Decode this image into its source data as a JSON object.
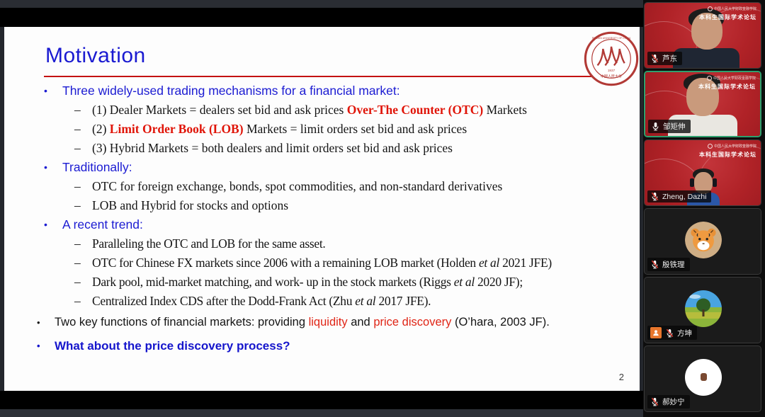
{
  "slide": {
    "title": "Motivation",
    "page_number": "2",
    "logo": {
      "arc_text": "RENMIN UNIVERSITY OF CHINA",
      "cn_text": "中国人民大学",
      "year": "1937"
    },
    "bullets": [
      {
        "type": "heading",
        "marker": "•",
        "segments": [
          {
            "text": "Three widely-used trading mechanisms for a financial market:"
          }
        ]
      },
      {
        "type": "sub",
        "marker": "–",
        "segments": [
          {
            "text": "(1) Dealer Markets = dealers set bid and ask prices "
          },
          {
            "text": "Over-The Counter (OTC)",
            "style": "red-bold"
          },
          {
            "text": " Markets"
          }
        ]
      },
      {
        "type": "sub",
        "marker": "–",
        "segments": [
          {
            "text": "(2) "
          },
          {
            "text": "Limit Order Book (LOB)",
            "style": "red-bold"
          },
          {
            "text": " Markets = limit orders set bid and ask prices"
          }
        ]
      },
      {
        "type": "sub",
        "marker": "–",
        "segments": [
          {
            "text": "(3) Hybrid Markets = both dealers and limit orders set bid and ask prices"
          }
        ]
      },
      {
        "type": "heading",
        "marker": "•",
        "segments": [
          {
            "text": "Traditionally:"
          }
        ]
      },
      {
        "type": "sub",
        "marker": "–",
        "segments": [
          {
            "text": "OTC for foreign exchange, bonds, spot commodities, and non-standard derivatives"
          }
        ]
      },
      {
        "type": "sub",
        "marker": "–",
        "segments": [
          {
            "text": "LOB and Hybrid for stocks and options"
          }
        ]
      },
      {
        "type": "heading",
        "marker": "•",
        "segments": [
          {
            "text": "A recent trend:"
          }
        ]
      },
      {
        "type": "sub-narrow",
        "marker": "–",
        "segments": [
          {
            "text": "Paralleling the OTC and LOB for the same asset."
          }
        ]
      },
      {
        "type": "sub-narrow",
        "marker": "–",
        "segments": [
          {
            "text": "OTC for Chinese FX markets since 2006 with a remaining LOB market (Holden "
          },
          {
            "text": "et al",
            "style": "italic"
          },
          {
            "text": " 2021 JFE)"
          }
        ]
      },
      {
        "type": "sub-narrow",
        "marker": "–",
        "segments": [
          {
            "text": "Dark pool, mid-market matching, and work- up in the stock markets (Riggs "
          },
          {
            "text": "et al",
            "style": "italic"
          },
          {
            "text": " 2020 JF);"
          }
        ]
      },
      {
        "type": "sub-narrow",
        "marker": "–",
        "segments": [
          {
            "text": "Centralized Index CDS after the Dodd-Frank Act (Zhu "
          },
          {
            "text": "et al",
            "style": "italic"
          },
          {
            "text": " 2017 JFE)."
          }
        ]
      },
      {
        "type": "body",
        "marker": "•",
        "segments": [
          {
            "text": "Two key functions of financial markets: providing "
          },
          {
            "text": "liquidity",
            "style": "red"
          },
          {
            "text": " and "
          },
          {
            "text": "price discovery",
            "style": "red"
          },
          {
            "text": " (O’hara, 2003 JF)."
          }
        ]
      },
      {
        "type": "question",
        "marker": "•",
        "segments": [
          {
            "text": "What about the price discovery process?"
          }
        ]
      }
    ]
  },
  "sidebar": {
    "virtual_background": {
      "line1": "中国人民大学财政金融学院",
      "line2": "本科生国际学术论坛"
    },
    "participants": [
      {
        "name": "芦东",
        "mic": "muted",
        "video": true,
        "figure": "f1",
        "active": false
      },
      {
        "name": "邹矩伸",
        "mic": "on",
        "video": true,
        "figure": "f2",
        "active": true
      },
      {
        "name": "Zheng, Dazhi",
        "mic": "muted",
        "video": true,
        "figure": "f3",
        "active": false
      },
      {
        "name": "殷铁理",
        "mic": "muted",
        "video": false,
        "avatar": "tiger",
        "active": false
      },
      {
        "name": "方坤",
        "mic": "muted",
        "video": false,
        "avatar": "landscape",
        "badge": "person-orange",
        "active": false
      },
      {
        "name": "郝妙宁",
        "mic": "muted",
        "video": false,
        "avatar": "white-dot",
        "active": false
      }
    ]
  },
  "colors": {
    "slide_accent_blue": "#1b1bd2",
    "slide_accent_red": "#e01408",
    "title_rule_red": "#c41212",
    "active_speaker_border": "#2ea06e",
    "forum_background_red": "#b02227",
    "badge_orange": "#e8762c"
  }
}
